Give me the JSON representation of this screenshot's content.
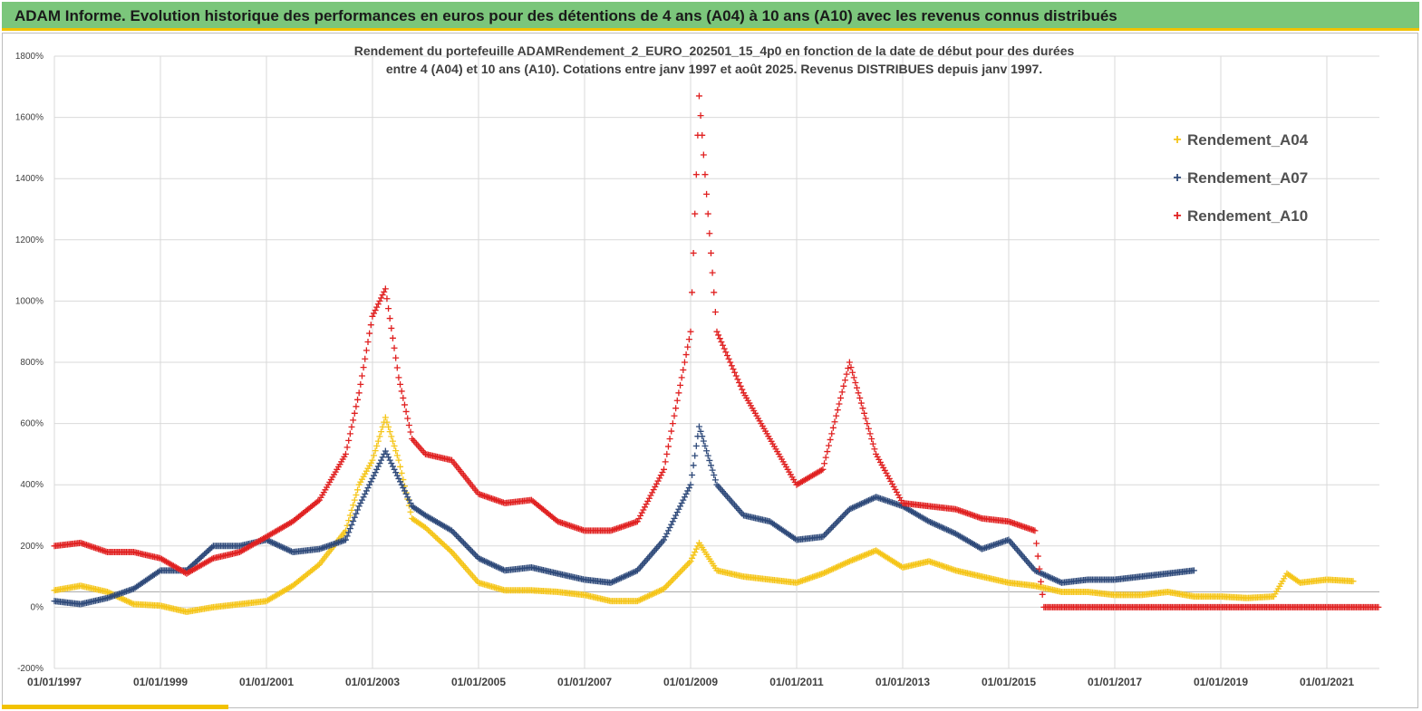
{
  "header": {
    "title": "ADAM Informe. Evolution historique des performances en euros pour des détentions de 4 ans (A04) à 10 ans (A10) avec les revenus connus distribués"
  },
  "chart_data": {
    "type": "scatter",
    "title_lines": [
      "Rendement du portefeuille ADAMRendement_2_EURO_202501_15_4p0  en fonction de la date de début pour des durées",
      "entre 4 (A04) et 10 ans (A10). Cotations  entre janv 1997 et août 2025. Revenus DISTRIBUES depuis janv 1997."
    ],
    "xlabel": "",
    "ylabel": "",
    "x_tick_labels": [
      "01/01/1997",
      "01/01/1999",
      "01/01/2001",
      "01/01/2003",
      "01/01/2005",
      "01/01/2007",
      "01/01/2009",
      "01/01/2011",
      "01/01/2013",
      "01/01/2015",
      "01/01/2017",
      "01/01/2019",
      "01/01/2021"
    ],
    "x_range": [
      "1997-01-01",
      "2022-01-01"
    ],
    "y_tick_labels": [
      "-200%",
      "0%",
      "200%",
      "400%",
      "600%",
      "800%",
      "1000%",
      "1200%",
      "1400%",
      "1600%",
      "1800%"
    ],
    "ylim": [
      -200,
      1800
    ],
    "y_unit": "%",
    "grid": true,
    "legend_position": "top-right",
    "marker": "+",
    "series": [
      {
        "name": "Rendement_A04",
        "color": "#f5c518",
        "points": [
          [
            "1997-01-01",
            55
          ],
          [
            "1997-07-01",
            70
          ],
          [
            "1998-01-01",
            50
          ],
          [
            "1998-07-01",
            10
          ],
          [
            "1999-01-01",
            5
          ],
          [
            "1999-07-01",
            -15
          ],
          [
            "2000-01-01",
            0
          ],
          [
            "2000-07-01",
            10
          ],
          [
            "2001-01-01",
            20
          ],
          [
            "2001-07-01",
            70
          ],
          [
            "2002-01-01",
            140
          ],
          [
            "2002-07-01",
            250
          ],
          [
            "2002-10-01",
            400
          ],
          [
            "2003-01-01",
            480
          ],
          [
            "2003-04-01",
            620
          ],
          [
            "2003-07-01",
            480
          ],
          [
            "2003-10-01",
            290
          ],
          [
            "2004-01-01",
            260
          ],
          [
            "2004-07-01",
            180
          ],
          [
            "2005-01-01",
            80
          ],
          [
            "2005-07-01",
            55
          ],
          [
            "2006-01-01",
            55
          ],
          [
            "2006-07-01",
            50
          ],
          [
            "2007-01-01",
            40
          ],
          [
            "2007-07-01",
            20
          ],
          [
            "2008-01-01",
            20
          ],
          [
            "2008-07-01",
            60
          ],
          [
            "2009-01-01",
            150
          ],
          [
            "2009-03-01",
            210
          ],
          [
            "2009-07-01",
            120
          ],
          [
            "2010-01-01",
            100
          ],
          [
            "2010-07-01",
            90
          ],
          [
            "2011-01-01",
            80
          ],
          [
            "2011-07-01",
            110
          ],
          [
            "2012-01-01",
            150
          ],
          [
            "2012-07-01",
            185
          ],
          [
            "2013-01-01",
            130
          ],
          [
            "2013-07-01",
            150
          ],
          [
            "2014-01-01",
            120
          ],
          [
            "2014-07-01",
            100
          ],
          [
            "2015-01-01",
            80
          ],
          [
            "2015-07-01",
            70
          ],
          [
            "2016-01-01",
            50
          ],
          [
            "2016-07-01",
            50
          ],
          [
            "2017-01-01",
            40
          ],
          [
            "2017-07-01",
            40
          ],
          [
            "2018-01-01",
            50
          ],
          [
            "2018-07-01",
            35
          ],
          [
            "2019-01-01",
            35
          ],
          [
            "2019-07-01",
            30
          ],
          [
            "2020-01-01",
            35
          ],
          [
            "2020-04-01",
            110
          ],
          [
            "2020-07-01",
            80
          ],
          [
            "2021-01-01",
            90
          ],
          [
            "2021-07-01",
            85
          ]
        ]
      },
      {
        "name": "Rendement_A07",
        "color": "#2f4a7a",
        "points": [
          [
            "1997-01-01",
            20
          ],
          [
            "1997-07-01",
            10
          ],
          [
            "1998-01-01",
            30
          ],
          [
            "1998-07-01",
            60
          ],
          [
            "1999-01-01",
            120
          ],
          [
            "1999-07-01",
            120
          ],
          [
            "2000-01-01",
            200
          ],
          [
            "2000-07-01",
            200
          ],
          [
            "2001-01-01",
            220
          ],
          [
            "2001-07-01",
            180
          ],
          [
            "2002-01-01",
            190
          ],
          [
            "2002-07-01",
            220
          ],
          [
            "2002-10-01",
            330
          ],
          [
            "2003-01-01",
            420
          ],
          [
            "2003-04-01",
            510
          ],
          [
            "2003-07-01",
            420
          ],
          [
            "2003-10-01",
            330
          ],
          [
            "2004-01-01",
            300
          ],
          [
            "2004-07-01",
            250
          ],
          [
            "2005-01-01",
            160
          ],
          [
            "2005-07-01",
            120
          ],
          [
            "2006-01-01",
            130
          ],
          [
            "2006-07-01",
            110
          ],
          [
            "2007-01-01",
            90
          ],
          [
            "2007-07-01",
            80
          ],
          [
            "2008-01-01",
            120
          ],
          [
            "2008-07-01",
            220
          ],
          [
            "2009-01-01",
            400
          ],
          [
            "2009-03-01",
            590
          ],
          [
            "2009-07-01",
            400
          ],
          [
            "2010-01-01",
            300
          ],
          [
            "2010-07-01",
            280
          ],
          [
            "2011-01-01",
            220
          ],
          [
            "2011-07-01",
            230
          ],
          [
            "2012-01-01",
            320
          ],
          [
            "2012-07-01",
            360
          ],
          [
            "2013-01-01",
            330
          ],
          [
            "2013-07-01",
            280
          ],
          [
            "2014-01-01",
            240
          ],
          [
            "2014-07-01",
            190
          ],
          [
            "2015-01-01",
            220
          ],
          [
            "2015-07-01",
            120
          ],
          [
            "2016-01-01",
            80
          ],
          [
            "2016-07-01",
            90
          ],
          [
            "2017-01-01",
            90
          ],
          [
            "2017-07-01",
            100
          ],
          [
            "2018-01-01",
            110
          ],
          [
            "2018-07-01",
            120
          ]
        ]
      },
      {
        "name": "Rendement_A10",
        "color": "#e02020",
        "points": [
          [
            "1997-01-01",
            200
          ],
          [
            "1997-07-01",
            210
          ],
          [
            "1998-01-01",
            180
          ],
          [
            "1998-07-01",
            180
          ],
          [
            "1999-01-01",
            160
          ],
          [
            "1999-07-01",
            110
          ],
          [
            "2000-01-01",
            160
          ],
          [
            "2000-07-01",
            180
          ],
          [
            "2001-01-01",
            230
          ],
          [
            "2001-07-01",
            280
          ],
          [
            "2002-01-01",
            350
          ],
          [
            "2002-07-01",
            500
          ],
          [
            "2002-10-01",
            700
          ],
          [
            "2003-01-01",
            950
          ],
          [
            "2003-04-01",
            1040
          ],
          [
            "2003-07-01",
            750
          ],
          [
            "2003-10-01",
            550
          ],
          [
            "2004-01-01",
            500
          ],
          [
            "2004-07-01",
            480
          ],
          [
            "2005-01-01",
            370
          ],
          [
            "2005-07-01",
            340
          ],
          [
            "2006-01-01",
            350
          ],
          [
            "2006-07-01",
            280
          ],
          [
            "2007-01-01",
            250
          ],
          [
            "2007-07-01",
            250
          ],
          [
            "2008-01-01",
            280
          ],
          [
            "2008-07-01",
            450
          ],
          [
            "2009-01-01",
            900
          ],
          [
            "2009-03-01",
            1670
          ],
          [
            "2009-07-01",
            900
          ],
          [
            "2010-01-01",
            700
          ],
          [
            "2010-07-01",
            550
          ],
          [
            "2011-01-01",
            400
          ],
          [
            "2011-07-01",
            450
          ],
          [
            "2012-01-01",
            800
          ],
          [
            "2012-07-01",
            500
          ],
          [
            "2013-01-01",
            340
          ],
          [
            "2013-07-01",
            330
          ],
          [
            "2014-01-01",
            320
          ],
          [
            "2014-07-01",
            290
          ],
          [
            "2015-01-01",
            280
          ],
          [
            "2015-07-01",
            250
          ],
          [
            "2015-09-01",
            0
          ],
          [
            "2017-01-01",
            0
          ],
          [
            "2019-01-01",
            0
          ],
          [
            "2021-01-01",
            0
          ],
          [
            "2022-01-01",
            0
          ]
        ]
      }
    ]
  }
}
